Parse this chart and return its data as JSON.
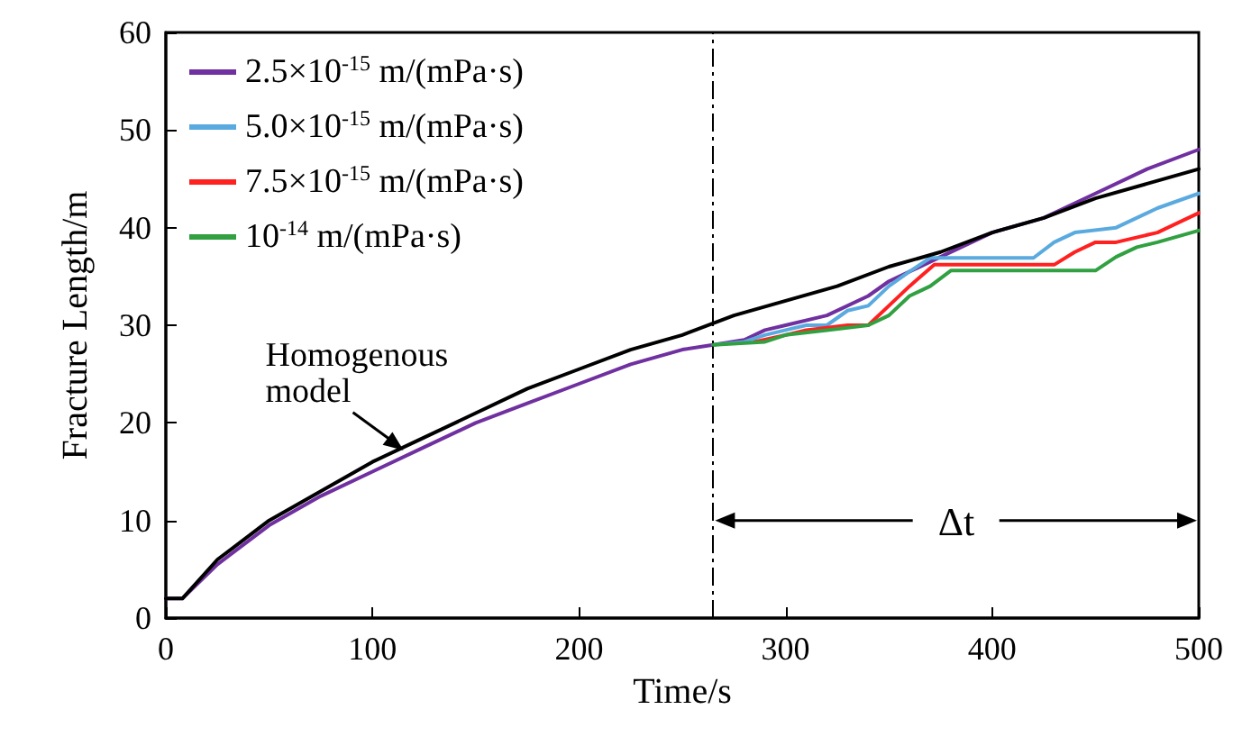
{
  "chart_data": {
    "type": "line",
    "xlabel": "Time/s",
    "ylabel": "Fracture Length/m",
    "xlim": [
      0,
      500
    ],
    "xticks": [
      0,
      100,
      200,
      300,
      400,
      500
    ],
    "ylim": [
      0,
      60
    ],
    "yticks": [
      0,
      10,
      20,
      30,
      40,
      50,
      60
    ],
    "grid": false,
    "legend": "top left",
    "marker": "none",
    "line_style": "solid",
    "series": [
      {
        "name": "2.5×10$^{-15}$ m/(mPa·s)",
        "color": "#7030a0",
        "x": [
          0,
          8,
          25,
          50,
          75,
          100,
          125,
          150,
          175,
          200,
          225,
          250,
          265,
          280,
          290,
          300,
          320,
          340,
          350,
          375,
          400,
          425,
          450,
          475,
          500
        ],
        "values": [
          2,
          2,
          5.5,
          9.5,
          12.5,
          15,
          17.5,
          20,
          22,
          24,
          26,
          27.5,
          28,
          28.5,
          29.5,
          30,
          31,
          33,
          34.5,
          37,
          39.5,
          41,
          43.5,
          46,
          48
        ]
      },
      {
        "name": "5.0×10$^{-15}$ m/(mPa·s)",
        "color": "#5aaae0",
        "x": [
          265,
          280,
          290,
          300,
          310,
          320,
          330,
          340,
          350,
          360,
          370,
          420,
          430,
          440,
          460,
          480,
          500
        ],
        "values": [
          28,
          28.3,
          29,
          29.5,
          30,
          30,
          31.5,
          32,
          34,
          35.5,
          36.9,
          36.9,
          38.5,
          39.5,
          40,
          42,
          43.5
        ]
      },
      {
        "name": "7.5×10$^{-15}$ m/(mPa·s)",
        "color": "#ff2020",
        "x": [
          285,
          300,
          310,
          330,
          340,
          350,
          360,
          372,
          430,
          440,
          450,
          460,
          480,
          500
        ],
        "values": [
          28.3,
          29,
          29.5,
          30,
          30,
          32,
          34,
          36.2,
          36.2,
          37.5,
          38.5,
          38.5,
          39.5,
          41.5
        ]
      },
      {
        "name": "10$^{-14}$ m/(mPa·s)",
        "color": "#30a040",
        "x": [
          265,
          290,
          300,
          320,
          340,
          350,
          360,
          370,
          380,
          450,
          460,
          470,
          480,
          500
        ],
        "values": [
          28,
          28.3,
          29,
          29.5,
          30,
          31,
          33,
          34,
          35.6,
          35.6,
          37,
          38,
          38.5,
          39.7
        ]
      },
      {
        "color": "#000000",
        "x": [
          0,
          8,
          25,
          50,
          75,
          100,
          125,
          150,
          175,
          200,
          225,
          250,
          275,
          300,
          325,
          350,
          375,
          400,
          425,
          450,
          475,
          500
        ],
        "values": [
          2,
          2,
          6,
          10,
          13,
          16,
          18.5,
          21,
          23.5,
          25.5,
          27.5,
          29,
          31,
          32.5,
          34,
          36,
          37.5,
          39.5,
          41,
          43,
          44.5,
          46
        ]
      }
    ],
    "ref_lines": [
      {
        "axis": "x",
        "value": 265,
        "line_style": "dashed",
        "color": "#000000"
      }
    ],
    "annotations": [
      {
        "text": "Homogenous\nmodel",
        "x": 115,
        "y": 17
      },
      "Δt"
    ]
  }
}
